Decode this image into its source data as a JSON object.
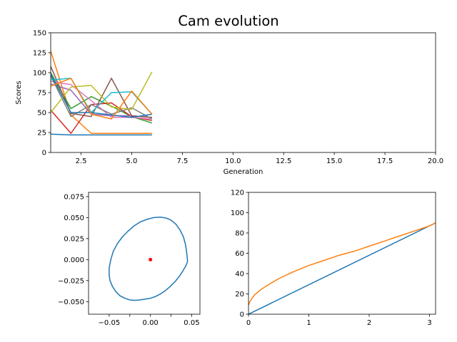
{
  "figure_title": "Cam evolution",
  "chart_data": [
    {
      "type": "line",
      "title": "",
      "xlabel": "Generation",
      "ylabel": "Scores",
      "xlim": [
        1,
        20
      ],
      "ylim": [
        0,
        150
      ],
      "x_ticks": [
        2.5,
        5.0,
        7.5,
        10.0,
        12.5,
        15.0,
        17.5,
        20.0
      ],
      "x_tick_labels": [
        "2.5",
        "5.0",
        "7.5",
        "10.0",
        "12.5",
        "15.0",
        "17.5",
        "20.0"
      ],
      "y_ticks": [
        0,
        25,
        50,
        75,
        100,
        125,
        150
      ],
      "y_tick_labels": [
        "0",
        "25",
        "50",
        "75",
        "100",
        "125",
        "150"
      ],
      "grid": false,
      "x": [
        1,
        2,
        3,
        4,
        5,
        6
      ],
      "series": [
        {
          "color": "#1f77b4",
          "values": [
            23,
            22,
            22,
            22,
            22,
            22
          ]
        },
        {
          "color": "#ff7f0e",
          "values": [
            127,
            47,
            24,
            24,
            24,
            24
          ]
        },
        {
          "color": "#2ca02c",
          "values": [
            100,
            55,
            70,
            58,
            45,
            37
          ]
        },
        {
          "color": "#d62728",
          "values": [
            53,
            24,
            60,
            62,
            45,
            40
          ]
        },
        {
          "color": "#9467bd",
          "values": [
            86,
            78,
            48,
            46,
            46,
            44
          ]
        },
        {
          "color": "#8c564b",
          "values": [
            108,
            49,
            45,
            93,
            46,
            44
          ]
        },
        {
          "color": "#e377c2",
          "values": [
            89,
            85,
            65,
            44,
            44,
            42
          ]
        },
        {
          "color": "#7f7f7f",
          "values": [
            96,
            45,
            60,
            48,
            56,
            42
          ]
        },
        {
          "color": "#bcbd22",
          "values": [
            50,
            82,
            84,
            57,
            54,
            101
          ]
        },
        {
          "color": "#17becf",
          "values": [
            91,
            93,
            50,
            75,
            76,
            48
          ]
        },
        {
          "color": "#1f77b4",
          "values": [
            98,
            50,
            50,
            47,
            44,
            48
          ]
        },
        {
          "color": "#ff7f0e",
          "values": [
            83,
            93,
            48,
            42,
            77,
            48
          ]
        }
      ]
    },
    {
      "type": "line",
      "title": "",
      "xlabel": "",
      "ylabel": "",
      "xlim": [
        -0.075,
        0.06
      ],
      "ylim": [
        -0.065,
        0.08
      ],
      "x_ticks": [
        -0.05,
        -0.025,
        0.0,
        0.025,
        0.05
      ],
      "x_tick_labels": [
        "−0.05",
        "",
        "0.00",
        "",
        "0.05"
      ],
      "y_ticks": [
        -0.05,
        -0.025,
        0.0,
        0.025,
        0.05,
        0.075
      ],
      "y_tick_labels": [
        "−0.050",
        "−0.025",
        "0.000",
        "0.025",
        "0.050",
        "0.075"
      ],
      "grid": false,
      "series": [
        {
          "color": "#1f77b4",
          "x": [
            0.045,
            0.044,
            0.0425,
            0.04,
            0.036,
            0.031,
            0.025,
            0.019,
            0.012,
            0.004,
            -0.004,
            -0.012,
            -0.02,
            -0.027,
            -0.034,
            -0.04,
            -0.045,
            -0.048,
            -0.05,
            -0.05,
            -0.049,
            -0.046,
            -0.042,
            -0.037,
            -0.031,
            -0.025,
            -0.019,
            -0.013,
            -0.006,
            0.0,
            0.006,
            0.012,
            0.018,
            0.024,
            0.03,
            0.035,
            0.039,
            0.042,
            0.044,
            0.045
          ],
          "y": [
            -0.002,
            0.008,
            0.018,
            0.027,
            0.035,
            0.042,
            0.047,
            0.0495,
            0.0505,
            0.05,
            0.048,
            0.045,
            0.04,
            0.034,
            0.027,
            0.019,
            0.01,
            0.0,
            -0.01,
            -0.018,
            -0.025,
            -0.032,
            -0.038,
            -0.043,
            -0.046,
            -0.048,
            -0.0485,
            -0.048,
            -0.047,
            -0.046,
            -0.044,
            -0.041,
            -0.037,
            -0.032,
            -0.026,
            -0.02,
            -0.014,
            -0.009,
            -0.005,
            -0.002
          ]
        },
        {
          "color": "#ff0000",
          "type": "scatter",
          "x": [
            0.0
          ],
          "y": [
            0.0
          ]
        }
      ]
    },
    {
      "type": "line",
      "title": "",
      "xlabel": "",
      "ylabel": "",
      "xlim": [
        0,
        3.1
      ],
      "ylim": [
        0,
        120
      ],
      "x_ticks": [
        0,
        1,
        2,
        3
      ],
      "x_tick_labels": [
        "0",
        "1",
        "2",
        "3"
      ],
      "y_ticks": [
        0,
        20,
        40,
        60,
        80,
        100,
        120
      ],
      "y_tick_labels": [
        "0",
        "20",
        "40",
        "60",
        "80",
        "100",
        "120"
      ],
      "grid": false,
      "series": [
        {
          "color": "#1f77b4",
          "x": [
            0,
            3.1
          ],
          "y": [
            0,
            90
          ]
        },
        {
          "color": "#ff7f0e",
          "x": [
            0.0,
            0.02,
            0.05,
            0.1,
            0.2,
            0.3,
            0.5,
            0.75,
            1.0,
            1.25,
            1.5,
            1.75,
            2.0,
            2.25,
            2.5,
            2.75,
            3.0,
            3.1
          ],
          "y": [
            9,
            12,
            15,
            19,
            24,
            28,
            35,
            42,
            48,
            53,
            58,
            62,
            67,
            72,
            77,
            82,
            87,
            90
          ]
        }
      ]
    }
  ]
}
